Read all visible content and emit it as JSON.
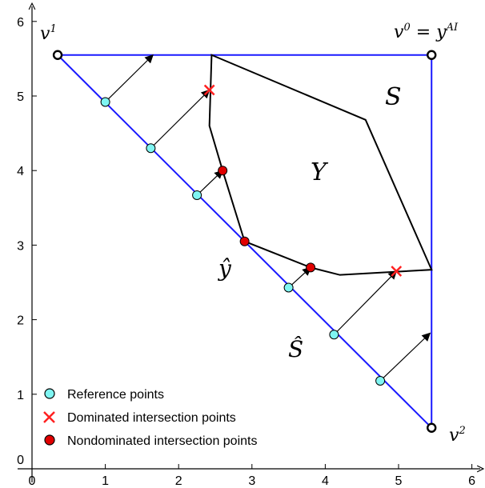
{
  "axes": {
    "x_ticks": [
      "0",
      "1",
      "2",
      "3",
      "4",
      "5",
      "6"
    ],
    "y_ticks": [
      "1",
      "2",
      "3",
      "4",
      "5",
      "6"
    ],
    "origin_label": "0",
    "xlim": [
      0,
      6
    ],
    "ylim": [
      0,
      6
    ]
  },
  "labels": {
    "v1": {
      "base": "v",
      "sup": "1"
    },
    "v0": {
      "base": "v",
      "sup": "0",
      "rest": " = y",
      "rest_sup": "AI"
    },
    "v2": {
      "base": "v",
      "sup": "2"
    },
    "S": "S",
    "Y": "Y",
    "y_hat": "ŷ",
    "S_hat": "Ŝ"
  },
  "legend": [
    {
      "label": "Reference points",
      "marker": "reference"
    },
    {
      "label": "Dominated intersection points",
      "marker": "dominated"
    },
    {
      "label": "Nondominated intersection points",
      "marker": "nondominated"
    }
  ],
  "colors": {
    "simplex": "#1a1aff",
    "set_Y": "#000000",
    "reference_fill": "#7ff5f2",
    "dominated": "#ff2020",
    "nondominated": "#e00000"
  },
  "geometry_data": {
    "vertices": {
      "v1": [
        0.35,
        5.55
      ],
      "v0": [
        5.45,
        5.55
      ],
      "v2": [
        5.45,
        0.55
      ]
    },
    "set_Y": [
      [
        2.45,
        5.55
      ],
      [
        4.55,
        4.68
      ],
      [
        5.45,
        2.67
      ],
      [
        4.2,
        2.6
      ],
      [
        3.8,
        2.7
      ],
      [
        2.9,
        3.05
      ],
      [
        2.6,
        4.0
      ],
      [
        2.42,
        4.6
      ],
      [
        2.45,
        5.55
      ]
    ],
    "reference_points": [
      [
        1.0,
        4.92
      ],
      [
        1.62,
        4.3
      ],
      [
        2.25,
        3.67
      ],
      [
        3.5,
        2.43
      ],
      [
        4.12,
        1.8
      ],
      [
        4.75,
        1.18
      ]
    ],
    "dominated_points": [
      [
        2.42,
        5.08
      ],
      [
        4.97,
        2.65
      ]
    ],
    "nondominated_points": [
      [
        2.6,
        4.0
      ],
      [
        2.9,
        3.05
      ],
      [
        3.8,
        2.7
      ]
    ],
    "arrows": [
      {
        "from": [
          1.0,
          4.92
        ],
        "to": [
          1.65,
          5.55
        ]
      },
      {
        "from": [
          1.62,
          4.3
        ],
        "to": [
          2.42,
          5.08
        ]
      },
      {
        "from": [
          2.25,
          3.67
        ],
        "to": [
          2.6,
          4.0
        ]
      },
      {
        "from": [
          3.5,
          2.43
        ],
        "to": [
          3.8,
          2.7
        ]
      },
      {
        "from": [
          4.12,
          1.8
        ],
        "to": [
          4.97,
          2.65
        ]
      },
      {
        "from": [
          4.75,
          1.18
        ],
        "to": [
          5.43,
          1.82
        ]
      }
    ]
  }
}
